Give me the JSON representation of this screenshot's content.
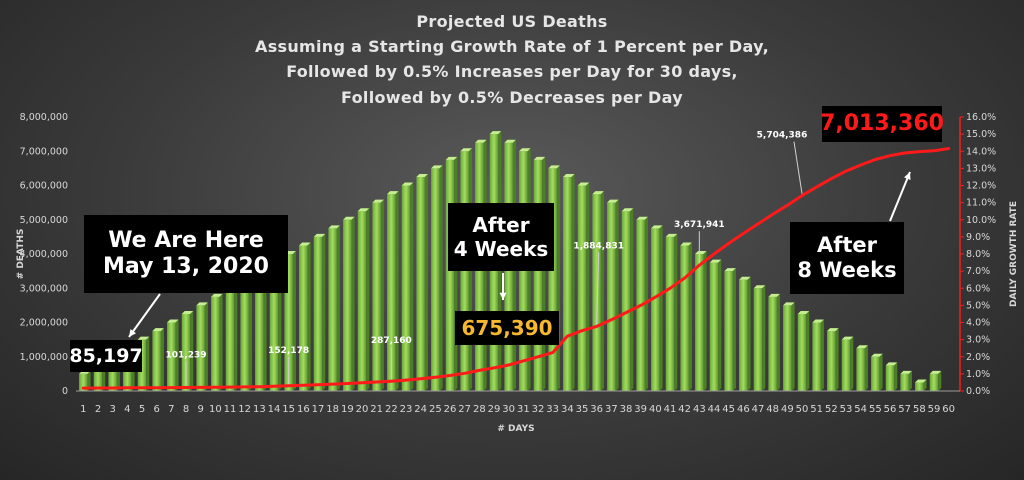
{
  "chart_data": {
    "type": "bar",
    "title": [
      "Projected US Deaths",
      "Assuming a Starting Growth Rate of 1 Percent per Day,",
      "Followed by 0.5% Increases per Day for 30 days,",
      "Followed by 0.5% Decreases per Day"
    ],
    "xlabel": "# DAYS",
    "ylabel_left": "# DEATHS",
    "ylabel_right": "DAILY GROWTH RATE",
    "categories": [
      "1",
      "2",
      "3",
      "4",
      "5",
      "6",
      "7",
      "8",
      "9",
      "10",
      "11",
      "12",
      "13",
      "14",
      "15",
      "16",
      "17",
      "18",
      "19",
      "20",
      "21",
      "22",
      "23",
      "24",
      "25",
      "26",
      "27",
      "28",
      "29",
      "30",
      "31",
      "32",
      "33",
      "34",
      "35",
      "36",
      "37",
      "38",
      "39",
      "40",
      "41",
      "42",
      "43",
      "44",
      "45",
      "46",
      "47",
      "48",
      "49",
      "50",
      "51",
      "52",
      "53",
      "54",
      "55",
      "56",
      "57",
      "58",
      "59",
      "60"
    ],
    "left_axis": {
      "ylim": [
        0,
        8000000
      ],
      "ticks": [
        "0",
        "1,000,000",
        "2,000,000",
        "3,000,000",
        "4,000,000",
        "5,000,000",
        "6,000,000",
        "7,000,000",
        "8,000,000"
      ]
    },
    "right_axis": {
      "ylim": [
        0,
        16
      ],
      "ticks": [
        "0.0%",
        "1.0%",
        "2.0%",
        "3.0%",
        "4.0%",
        "5.0%",
        "6.0%",
        "7.0%",
        "8.0%",
        "9.0%",
        "10.0%",
        "11.0%",
        "12.0%",
        "13.0%",
        "14.0%",
        "15.0%",
        "16.0%"
      ]
    },
    "series": [
      {
        "name": "Daily Growth Rate",
        "kind": "bar",
        "axis": "right",
        "color": "#8ccf4d",
        "values": [
          1.0,
          1.5,
          2.0,
          2.5,
          3.0,
          3.5,
          4.0,
          4.5,
          5.0,
          5.5,
          6.0,
          6.5,
          7.0,
          7.5,
          8.0,
          8.5,
          9.0,
          9.5,
          10.0,
          10.5,
          11.0,
          11.5,
          12.0,
          12.5,
          13.0,
          13.5,
          14.0,
          14.5,
          15.0,
          14.5,
          14.0,
          13.5,
          13.0,
          12.5,
          12.0,
          11.5,
          11.0,
          10.5,
          10.0,
          9.5,
          9.0,
          8.5,
          8.0,
          7.5,
          7.0,
          6.5,
          6.0,
          5.5,
          5.0,
          4.5,
          4.0,
          3.5,
          3.0,
          2.5,
          2.0,
          1.5,
          1.0,
          0.5,
          1.0,
          0.0
        ]
      },
      {
        "name": "Projected US Deaths",
        "kind": "line",
        "axis": "left",
        "color": "#ff1a1a",
        "values": [
          85197,
          87000,
          89000,
          92000,
          95000,
          97500,
          99500,
          101239,
          104000,
          108000,
          113000,
          119000,
          127000,
          137000,
          152178,
          166000,
          182000,
          200000,
          220000,
          240000,
          262000,
          287160,
          318000,
          355000,
          400000,
          452000,
          518000,
          600000,
          675390,
          760000,
          880000,
          1000000,
          1120000,
          1600000,
          1760000,
          1884831,
          2080000,
          2290000,
          2500000,
          2740000,
          3000000,
          3300000,
          3671941,
          4000000,
          4310000,
          4600000,
          4880000,
          5160000,
          5420000,
          5704386,
          5960000,
          6200000,
          6420000,
          6600000,
          6760000,
          6870000,
          6950000,
          6990000,
          7013360,
          7080000
        ]
      }
    ],
    "point_labels": [
      {
        "day": 8,
        "text": "101,239"
      },
      {
        "day": 15,
        "text": "152,178"
      },
      {
        "day": 22,
        "text": "287,160"
      },
      {
        "day": 36,
        "text": "1,884,831"
      },
      {
        "day": 43,
        "text": "3,671,941"
      },
      {
        "day": 50,
        "text": "5,704,386"
      }
    ],
    "callouts": [
      {
        "text": "We Are Here\nMay 13, 2020"
      },
      {
        "text": "85,197"
      },
      {
        "text": "After\n4 Weeks"
      },
      {
        "text": "675,390",
        "color": "#f5b82e"
      },
      {
        "text": "After\n8 Weeks"
      },
      {
        "text": "7,013,360",
        "color": "#ff1a1a"
      }
    ]
  }
}
